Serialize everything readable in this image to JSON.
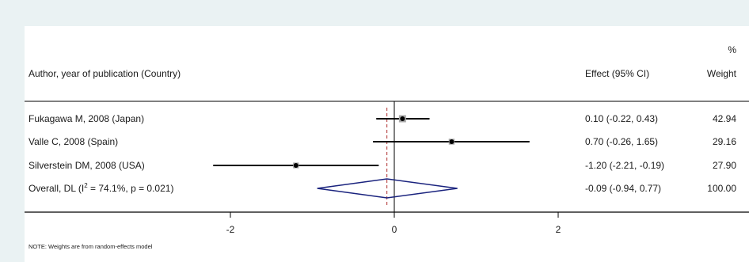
{
  "chart_data": {
    "type": "forest",
    "header": {
      "study_column": "Author, year of publication (Country)",
      "effect_column": "Effect (95% CI)",
      "weight_column_top": "%",
      "weight_column": "Weight"
    },
    "studies": [
      {
        "label": "Fukagawa M, 2008 (Japan)",
        "effect": 0.1,
        "ci": [
          -0.22,
          0.43
        ],
        "effect_text": "0.10 (-0.22, 0.43)",
        "weight": 42.94,
        "weight_text": "42.94"
      },
      {
        "label": "Valle C, 2008 (Spain)",
        "effect": 0.7,
        "ci": [
          -0.26,
          1.65
        ],
        "effect_text": "0.70 (-0.26, 1.65)",
        "weight": 29.16,
        "weight_text": "29.16"
      },
      {
        "label": "Silverstein DM, 2008 (USA)",
        "effect": -1.2,
        "ci": [
          -2.21,
          -0.19
        ],
        "effect_text": "-1.20 (-2.21, -0.19)",
        "weight": 27.9,
        "weight_text": "27.90"
      }
    ],
    "overall": {
      "label_prefix": "Overall, DL (I",
      "label_sup": "2",
      "label_suffix": " = 74.1%, p = 0.021)",
      "effect": -0.09,
      "ci": [
        -0.94,
        0.77
      ],
      "effect_text": "-0.09 (-0.94, 0.77)",
      "weight_text": "100.00"
    },
    "x_ticks": [
      -2,
      0,
      2
    ],
    "x_tick_labels": [
      "-2",
      "0",
      "2"
    ],
    "xlim": [
      -2.21,
      1.65
    ],
    "null_line": 0,
    "note": "NOTE: Weights are from random-effects model",
    "colors": {
      "background": "#eaf2f3",
      "panel": "#ffffff",
      "ci_line": "#000000",
      "weight_box": "#a9a9a9",
      "diamond": "#1a237e",
      "overall_line": "#b03030"
    }
  }
}
